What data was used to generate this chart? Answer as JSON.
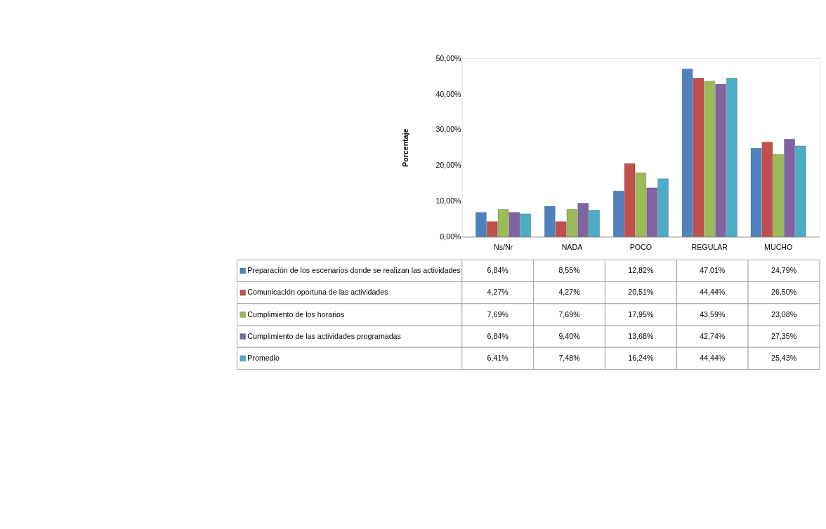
{
  "chart_data": {
    "type": "bar",
    "ylabel": "Porcentaje",
    "categories": [
      "Ns/Nr",
      "NADA",
      "POCO",
      "REGULAR",
      "MUCHO"
    ],
    "ylim": [
      0,
      50
    ],
    "yticks": [
      {
        "value": 0,
        "label": "0,00%"
      },
      {
        "value": 10,
        "label": "10,00%"
      },
      {
        "value": 20,
        "label": "20,00%"
      },
      {
        "value": 30,
        "label": "30,00%"
      },
      {
        "value": 40,
        "label": "40,00%"
      },
      {
        "value": 50,
        "label": "50,00%"
      }
    ],
    "grid": false,
    "legend": "bottom",
    "series": [
      {
        "name": "Preparación de los escenarios donde se realizan las actividades",
        "color": "#4f81bd",
        "values": [
          6.84,
          8.55,
          12.82,
          47.01,
          24.79
        ],
        "value_labels": [
          "6,84%",
          "8,55%",
          "12,82%",
          "47,01%",
          "24,79%"
        ]
      },
      {
        "name": "Comunicación oportuna de las actividades",
        "color": "#c0504d",
        "values": [
          4.27,
          4.27,
          20.51,
          44.44,
          26.5
        ],
        "value_labels": [
          "4,27%",
          "4,27%",
          "20,51%",
          "44,44%",
          "26,50%"
        ]
      },
      {
        "name": "Cumplimiento de los horarios",
        "color": "#9bbb59",
        "values": [
          7.69,
          7.69,
          17.95,
          43.59,
          23.08
        ],
        "value_labels": [
          "7,69%",
          "7,69%",
          "17,95%",
          "43,59%",
          "23,08%"
        ]
      },
      {
        "name": "Cumplimiento de las actividades programadas",
        "color": "#8064a2",
        "values": [
          6.84,
          9.4,
          13.68,
          42.74,
          27.35
        ],
        "value_labels": [
          "6,84%",
          "9,40%",
          "13,68%",
          "42,74%",
          "27,35%"
        ]
      },
      {
        "name": "Promedio",
        "color": "#4bacc6",
        "values": [
          6.41,
          7.48,
          16.24,
          44.44,
          25.43
        ],
        "value_labels": [
          "6,41%",
          "7,48%",
          "16,24%",
          "44,44%",
          "25,43%"
        ]
      }
    ]
  }
}
